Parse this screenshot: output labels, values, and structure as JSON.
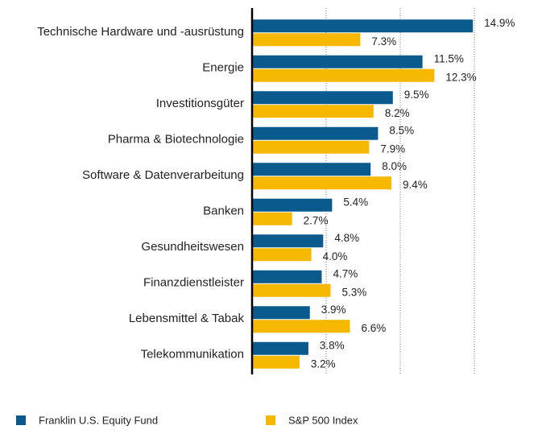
{
  "chart_data": {
    "type": "hbar",
    "categories": [
      "Technische Hardware und -ausrüstung",
      "Energie",
      "Investitionsgüter",
      "Pharma & Biotechnologie",
      "Software & Datenverarbeitung",
      "Banken",
      "Gesundheitswesen",
      "Finanzdienstleister",
      "Lebensmittel & Tabak",
      "Telekommunikation"
    ],
    "series": [
      {
        "name": "Franklin U.S. Equity Fund",
        "color": "#0b5a8e",
        "values": [
          14.9,
          11.5,
          9.5,
          8.5,
          8.0,
          5.4,
          4.8,
          4.7,
          3.9,
          3.8
        ],
        "value_labels": [
          "14.9%",
          "11.5%",
          "9.5%",
          "8.5%",
          "8.0%",
          "5.4%",
          "4.8%",
          "4.7%",
          "3.9%",
          "3.8%"
        ]
      },
      {
        "name": "S&P 500 Index",
        "color": "#f6b800",
        "values": [
          7.3,
          12.3,
          8.2,
          7.9,
          9.4,
          2.7,
          4.0,
          5.3,
          6.6,
          3.2
        ],
        "value_labels": [
          "7.3%",
          "12.3%",
          "8.2%",
          "7.9%",
          "9.4%",
          "2.7%",
          "4.0%",
          "5.3%",
          "6.6%",
          "3.2%"
        ]
      }
    ],
    "xlim": [
      0,
      15
    ],
    "xticks": [
      5,
      10,
      15
    ],
    "grid": true
  }
}
